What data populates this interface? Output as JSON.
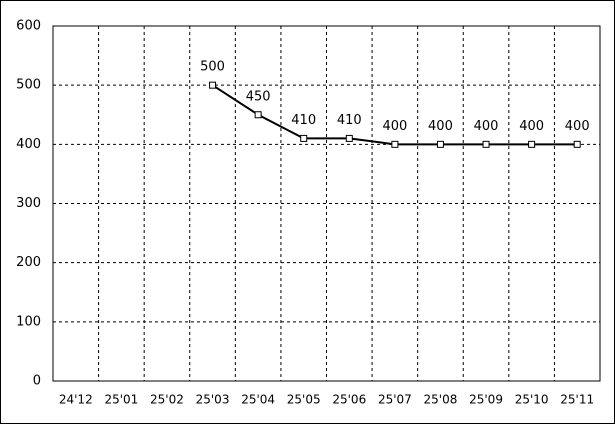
{
  "chart_data": {
    "type": "line",
    "categories": [
      "24'12",
      "25'01",
      "25'02",
      "25'03",
      "25'04",
      "25'05",
      "25'06",
      "25'07",
      "25'08",
      "25'09",
      "25'10",
      "25'11"
    ],
    "values": [
      null,
      null,
      null,
      500,
      450,
      410,
      410,
      400,
      400,
      400,
      400,
      400
    ],
    "color": "#000000",
    "ylim": [
      0,
      600
    ],
    "yticks": [
      0,
      100,
      200,
      300,
      400,
      500,
      600
    ],
    "grid": true
  }
}
